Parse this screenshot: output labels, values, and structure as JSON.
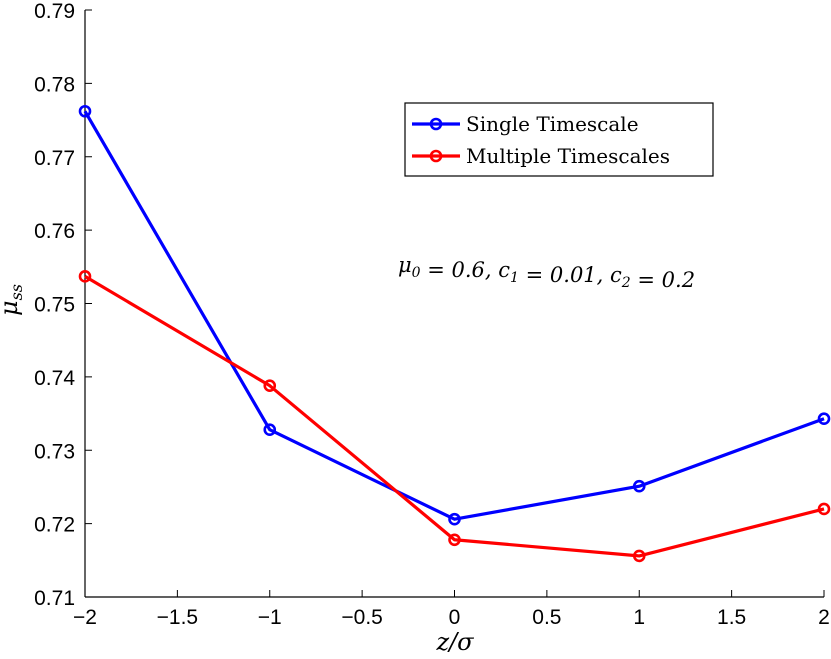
{
  "chart_data": {
    "type": "line",
    "x": [
      -2,
      -1,
      0,
      1,
      2
    ],
    "series": [
      {
        "name": "Single Timescale",
        "color": "#0000ff",
        "values": [
          0.7762,
          0.7328,
          0.7206,
          0.7251,
          0.7343
        ]
      },
      {
        "name": "Multiple Timescales",
        "color": "#ff0000",
        "values": [
          0.7537,
          0.7388,
          0.7178,
          0.7156,
          0.722
        ]
      }
    ],
    "xlabel": "z/σ",
    "ylabel": "μss",
    "ylabel_main": "μ",
    "ylabel_sub": "ss",
    "xlim": [
      -2,
      2
    ],
    "ylim": [
      0.71,
      0.79
    ],
    "xticks": [
      -2,
      -1.5,
      -1,
      -0.5,
      0,
      0.5,
      1,
      1.5,
      2
    ],
    "xtick_labels": [
      "−2",
      "−1.5",
      "−1",
      "−0.5",
      "0",
      "0.5",
      "1",
      "1.5",
      "2"
    ],
    "yticks": [
      0.71,
      0.72,
      0.73,
      0.74,
      0.75,
      0.76,
      0.77,
      0.78,
      0.79
    ],
    "ytick_labels": [
      "0.71",
      "0.72",
      "0.73",
      "0.74",
      "0.75",
      "0.76",
      "0.77",
      "0.78",
      "0.79"
    ],
    "annotation": "μ0 = 0.6, c1 = 0.01, c2 = 0.2",
    "annotation_parts": [
      {
        "t": "μ",
        "sub": "0"
      },
      {
        "t": " = 0.6, c",
        "sub": "1"
      },
      {
        "t": " = 0.01, c",
        "sub": "2"
      },
      {
        "t": " = 0.2",
        "sub": ""
      }
    ],
    "grid": false,
    "legend_position": "top-right",
    "marker": "open-circle"
  }
}
